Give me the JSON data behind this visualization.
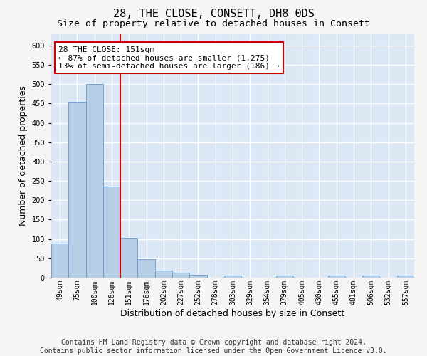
{
  "title": "28, THE CLOSE, CONSETT, DH8 0DS",
  "subtitle": "Size of property relative to detached houses in Consett",
  "xlabel": "Distribution of detached houses by size in Consett",
  "ylabel": "Number of detached properties",
  "categories": [
    "49sqm",
    "75sqm",
    "100sqm",
    "126sqm",
    "151sqm",
    "176sqm",
    "202sqm",
    "227sqm",
    "252sqm",
    "278sqm",
    "303sqm",
    "329sqm",
    "354sqm",
    "379sqm",
    "405sqm",
    "430sqm",
    "455sqm",
    "481sqm",
    "506sqm",
    "532sqm",
    "557sqm"
  ],
  "values": [
    88,
    455,
    500,
    235,
    103,
    47,
    19,
    12,
    7,
    0,
    5,
    0,
    0,
    5,
    0,
    0,
    5,
    0,
    5,
    0,
    5
  ],
  "bar_color": "#b8cfe8",
  "bar_edge_color": "#6699cc",
  "vline_color": "#cc0000",
  "annotation_text": "28 THE CLOSE: 151sqm\n← 87% of detached houses are smaller (1,275)\n13% of semi-detached houses are larger (186) →",
  "annotation_box_color": "#ffffff",
  "annotation_box_edge_color": "#cc0000",
  "ylim": [
    0,
    630
  ],
  "yticks": [
    0,
    50,
    100,
    150,
    200,
    250,
    300,
    350,
    400,
    450,
    500,
    550,
    600
  ],
  "footer_line1": "Contains HM Land Registry data © Crown copyright and database right 2024.",
  "footer_line2": "Contains public sector information licensed under the Open Government Licence v3.0.",
  "plot_bg_color": "#dce8f5",
  "fig_bg_color": "#f5f5f5",
  "grid_color": "#ffffff",
  "title_fontsize": 11,
  "subtitle_fontsize": 9.5,
  "tick_fontsize": 7,
  "label_fontsize": 9,
  "footer_fontsize": 7,
  "annotation_fontsize": 8
}
